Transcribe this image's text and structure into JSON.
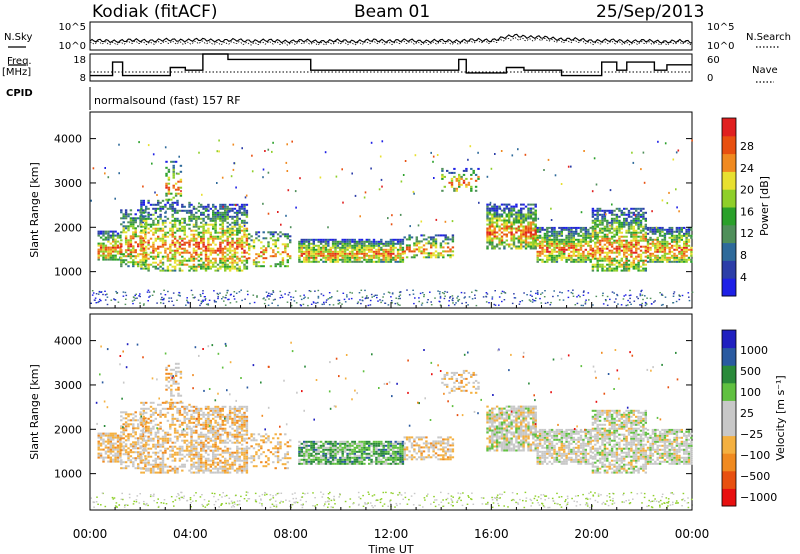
{
  "header": {
    "station": "Kodiak (fitACF)",
    "beam": "Beam 01",
    "date": "25/Sep/2013"
  },
  "left_labels": {
    "nsky": "N.Sky",
    "freq": "Freq.",
    "freq_unit": "[MHz]",
    "cpid": "CPID"
  },
  "right_labels": {
    "nsearch": "N.Search",
    "nave": "Nave"
  },
  "cpid_text": "normalsound (fast) 157 RF",
  "colors": {
    "power": [
      "#1e20e6",
      "#2c3ea8",
      "#2e6a9a",
      "#4f8f5a",
      "#2aa02a",
      "#8fcf2a",
      "#e8e030",
      "#f08a20",
      "#e85010",
      "#e02020"
    ],
    "velocity": [
      "#e81010",
      "#e85010",
      "#f08a20",
      "#f4b040",
      "#c8c8c8",
      "#c8c8c8",
      "#60c040",
      "#2a8a3a",
      "#2a5aa0",
      "#2020c0"
    ]
  },
  "chart_data": [
    {
      "type": "line",
      "name": "noise",
      "ylabels_left": [
        "10^5",
        "10^0"
      ],
      "ylabels_right": [
        "10^5",
        "10^0"
      ],
      "x": [
        0,
        2,
        4,
        6,
        8,
        10,
        12,
        14,
        16,
        17,
        18,
        20,
        22,
        24
      ],
      "series": [
        {
          "name": "N.Sky",
          "values": [
            1.6,
            1.7,
            1.8,
            1.7,
            1.6,
            1.6,
            1.7,
            1.6,
            1.8,
            2.6,
            2.2,
            1.7,
            1.6,
            1.5
          ]
        },
        {
          "name": "N.Search",
          "values": [
            1.2,
            1.3,
            1.3,
            1.2,
            1.2,
            1.2,
            1.3,
            1.2,
            1.5,
            2.0,
            1.8,
            1.3,
            1.2,
            1.2
          ]
        }
      ],
      "ylim": [
        0,
        5
      ]
    },
    {
      "type": "line",
      "name": "freq-nave",
      "ylabels_left": [
        "18",
        "8"
      ],
      "ylabels_right": [
        "60",
        "0"
      ],
      "step_series": {
        "name": "Freq.",
        "points": [
          [
            0,
            10
          ],
          [
            0.9,
            15
          ],
          [
            1.3,
            10
          ],
          [
            3.2,
            13
          ],
          [
            3.8,
            12
          ],
          [
            4.5,
            18
          ],
          [
            5.5,
            16
          ],
          [
            8.8,
            12
          ],
          [
            14.7,
            16
          ],
          [
            15,
            11
          ],
          [
            16.6,
            13
          ],
          [
            17.3,
            12
          ],
          [
            18.8,
            10
          ],
          [
            19.3,
            10
          ],
          [
            20.4,
            15
          ],
          [
            21,
            12
          ],
          [
            21.4,
            15
          ],
          [
            22.5,
            12
          ],
          [
            23,
            14
          ],
          [
            24,
            14
          ]
        ]
      },
      "dotted_series": {
        "name": "Nave",
        "value": 20
      },
      "ylim": [
        8,
        18
      ]
    },
    {
      "type": "heatmap",
      "name": "power",
      "xticks": [
        "00:00",
        "04:00",
        "08:00",
        "12:00",
        "16:00",
        "20:00",
        "00:00"
      ],
      "xlabel": "Time UT",
      "yticks": [
        1000,
        2000,
        3000,
        4000
      ],
      "ylabel": "Slant Range [km]",
      "ylim": [
        180,
        4600
      ],
      "xlim": [
        0,
        24
      ],
      "colorbar": {
        "label": "Power [dB]",
        "ticks": [
          "28",
          "24",
          "20",
          "16",
          "12",
          "8",
          "4"
        ]
      }
    },
    {
      "type": "heatmap",
      "name": "velocity",
      "xticks": [
        "00:00",
        "04:00",
        "08:00",
        "12:00",
        "16:00",
        "20:00",
        "00:00"
      ],
      "xlabel": "Time UT",
      "yticks": [
        1000,
        2000,
        3000,
        4000
      ],
      "ylabel": "Slant Range [km]",
      "ylim": [
        180,
        4600
      ],
      "xlim": [
        0,
        24
      ],
      "colorbar": {
        "label": "Velocity [m s⁻¹]",
        "ticks": [
          "1000",
          "500",
          "100",
          "25",
          "−25",
          "−100",
          "−500",
          "−1000"
        ]
      }
    }
  ]
}
